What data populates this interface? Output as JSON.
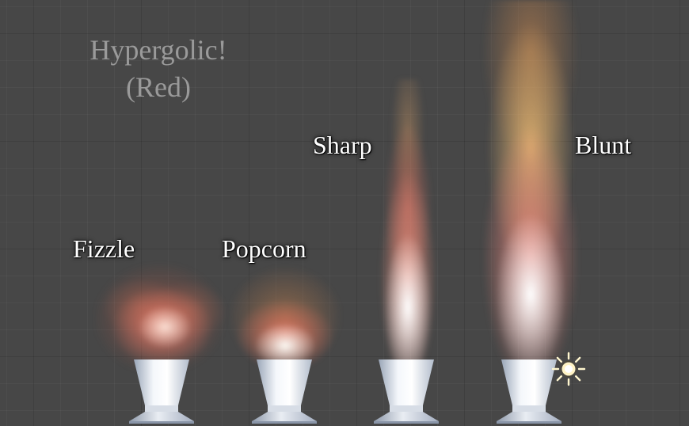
{
  "scene": {
    "title_line1": "Hypergolic!",
    "title_line2": "(Red)",
    "background_color": "#474747",
    "grid_color": "#3a3a3a"
  },
  "effects": [
    {
      "label": "Fizzle",
      "color": "#e8806a"
    },
    {
      "label": "Popcorn",
      "color": "#f07a62"
    },
    {
      "label": "Sharp",
      "color": "#f58f7a"
    },
    {
      "label": "Blunt",
      "color": "#f8b074"
    }
  ],
  "gizmos": {
    "light_icon": "sun-icon"
  }
}
